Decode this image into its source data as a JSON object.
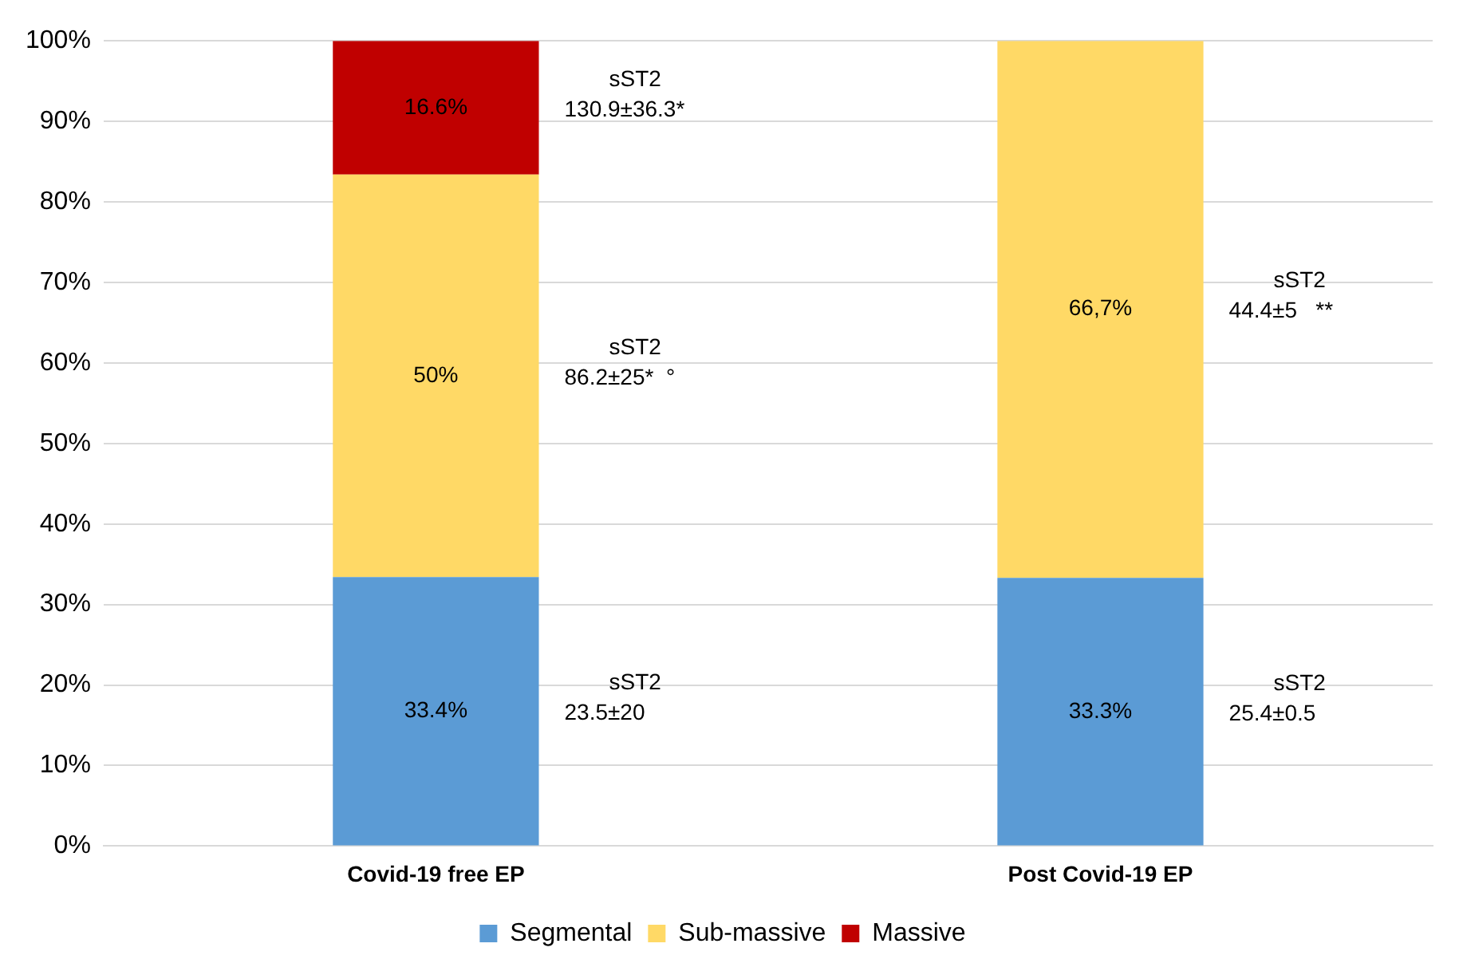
{
  "chart_data": {
    "type": "bar",
    "stacked": true,
    "categories": [
      "Covid-19 free EP",
      "Post Covid-19 EP"
    ],
    "series": [
      {
        "name": "Segmental",
        "color": "#5b9bd5",
        "values": [
          33.4,
          33.3
        ],
        "value_labels": [
          "33.4%",
          "33.3%"
        ]
      },
      {
        "name": "Sub-massive",
        "color": "#ffd966",
        "values": [
          50,
          66.7
        ],
        "value_labels": [
          "50%",
          "66,7%"
        ]
      },
      {
        "name": "Massive",
        "color": "#c00000",
        "values": [
          16.6,
          null
        ],
        "value_labels": [
          "16.6%",
          null
        ]
      }
    ],
    "ylim": [
      0,
      100
    ],
    "yticks": [
      {
        "value": 0,
        "label": "0%"
      },
      {
        "value": 10,
        "label": "10%"
      },
      {
        "value": 20,
        "label": "20%"
      },
      {
        "value": 30,
        "label": "30%"
      },
      {
        "value": 40,
        "label": "40%"
      },
      {
        "value": 50,
        "label": "50%"
      },
      {
        "value": 60,
        "label": "60%"
      },
      {
        "value": 70,
        "label": "70%"
      },
      {
        "value": 80,
        "label": "80%"
      },
      {
        "value": 90,
        "label": "90%"
      },
      {
        "value": 100,
        "label": "100%"
      }
    ],
    "grid": "y",
    "legend": "bottom",
    "annotations": [
      "sST2\n130.9±36.3*",
      "sST2\n86.2±25*  °",
      "sST2\n23.5±20",
      "sST2\n44.4±5   **",
      "sST2\n25.4±0.5"
    ]
  }
}
